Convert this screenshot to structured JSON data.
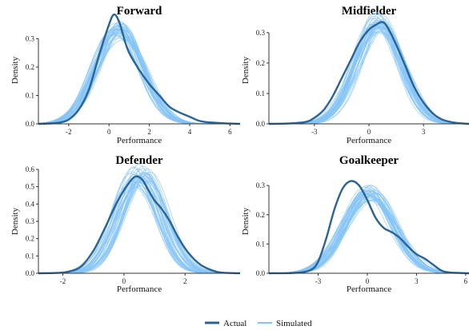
{
  "colors": {
    "actual": "#2a6496",
    "simulated": "#85c4f5",
    "axis": "#333333"
  },
  "legend": [
    {
      "key": "actual",
      "label": "Actual"
    },
    {
      "key": "simulated",
      "label": "Simulated"
    }
  ],
  "chart_data": [
    {
      "type": "line",
      "title": "Forward",
      "xlabel": "Performance",
      "ylabel": "Density",
      "xlim": [
        -3.5,
        6.5
      ],
      "ylim": [
        0,
        0.38
      ],
      "xticks": [
        -2,
        0,
        2,
        4,
        6
      ],
      "yticks": [
        0.0,
        0.1,
        0.2,
        0.3
      ],
      "ytick_labels": [
        "0.0",
        "0.1",
        "0.2",
        "0.3"
      ],
      "actual": {
        "x": [
          -3.5,
          -3,
          -2.5,
          -2,
          -1.5,
          -1,
          -0.5,
          0,
          0.25,
          0.5,
          0.75,
          1,
          1.5,
          2,
          2.5,
          3,
          3.5,
          4,
          4.5,
          5,
          5.5,
          6,
          6.5
        ],
        "y": [
          0,
          0.001,
          0.004,
          0.015,
          0.05,
          0.12,
          0.24,
          0.35,
          0.385,
          0.36,
          0.3,
          0.25,
          0.19,
          0.14,
          0.1,
          0.06,
          0.04,
          0.025,
          0.01,
          0.005,
          0.003,
          0.001,
          0
        ]
      },
      "simulated": {
        "center": 0.5,
        "sd": 1.15,
        "peak": 0.33
      }
    },
    {
      "type": "line",
      "title": "Midfielder",
      "xlabel": "Performance",
      "ylabel": "Density",
      "xlim": [
        -5.5,
        5.5
      ],
      "ylim": [
        0,
        0.355
      ],
      "xticks": [
        -3,
        0,
        3
      ],
      "yticks": [
        0.0,
        0.1,
        0.2,
        0.3
      ],
      "ytick_labels": [
        "0.0",
        "0.1",
        "0.2",
        "0.3"
      ],
      "actual": {
        "x": [
          -5.5,
          -4.5,
          -3.5,
          -3,
          -2.5,
          -2,
          -1.5,
          -1,
          -0.5,
          0,
          0.5,
          0.75,
          1,
          1.5,
          2,
          2.5,
          3,
          3.5,
          4,
          4.5,
          5,
          5.5
        ],
        "y": [
          0,
          0.001,
          0.006,
          0.02,
          0.045,
          0.09,
          0.15,
          0.21,
          0.27,
          0.31,
          0.33,
          0.335,
          0.32,
          0.26,
          0.19,
          0.12,
          0.07,
          0.035,
          0.015,
          0.006,
          0.002,
          0
        ]
      },
      "simulated": {
        "center": 0.55,
        "sd": 1.25,
        "peak": 0.33
      }
    },
    {
      "type": "line",
      "title": "Defender",
      "xlabel": "Performance",
      "ylabel": "Density",
      "xlim": [
        -2.8,
        3.8
      ],
      "ylim": [
        0,
        0.6
      ],
      "xticks": [
        -2,
        0,
        2
      ],
      "yticks": [
        0.0,
        0.1,
        0.2,
        0.3,
        0.4,
        0.5,
        0.6
      ],
      "ytick_labels": [
        "0.0",
        "0.1",
        "0.2",
        "0.3",
        "0.4",
        "0.5",
        "0.6"
      ],
      "actual": {
        "x": [
          -2.8,
          -2.2,
          -1.8,
          -1.4,
          -1,
          -0.6,
          -0.2,
          0.2,
          0.4,
          0.6,
          0.8,
          1,
          1.2,
          1.5,
          1.8,
          2.1,
          2.5,
          3,
          3.4,
          3.8
        ],
        "y": [
          0,
          0.002,
          0.01,
          0.04,
          0.13,
          0.27,
          0.42,
          0.53,
          0.56,
          0.54,
          0.48,
          0.42,
          0.38,
          0.3,
          0.2,
          0.12,
          0.05,
          0.01,
          0.002,
          0
        ]
      },
      "simulated": {
        "center": 0.5,
        "sd": 0.72,
        "peak": 0.56
      }
    },
    {
      "type": "line",
      "title": "Goalkeeper",
      "xlabel": "Performance",
      "ylabel": "Density",
      "xlim": [
        -6,
        6.2
      ],
      "ylim": [
        0,
        0.355
      ],
      "xticks": [
        -3,
        0,
        3,
        6
      ],
      "yticks": [
        0.0,
        0.1,
        0.2,
        0.3
      ],
      "ytick_labels": [
        "0.0",
        "0.1",
        "0.2",
        "0.3"
      ],
      "actual": {
        "x": [
          -6,
          -4.5,
          -3.5,
          -3,
          -2.5,
          -2,
          -1.5,
          -1,
          -0.5,
          0,
          0.5,
          1,
          1.5,
          2,
          2.5,
          3,
          3.5,
          4,
          4.5,
          5,
          6.2
        ],
        "y": [
          0,
          0.001,
          0.01,
          0.04,
          0.12,
          0.22,
          0.29,
          0.315,
          0.3,
          0.25,
          0.19,
          0.155,
          0.14,
          0.12,
          0.09,
          0.065,
          0.05,
          0.03,
          0.01,
          0.003,
          0
        ]
      },
      "simulated": {
        "center": 0.1,
        "sd": 1.5,
        "peak": 0.27
      }
    }
  ]
}
